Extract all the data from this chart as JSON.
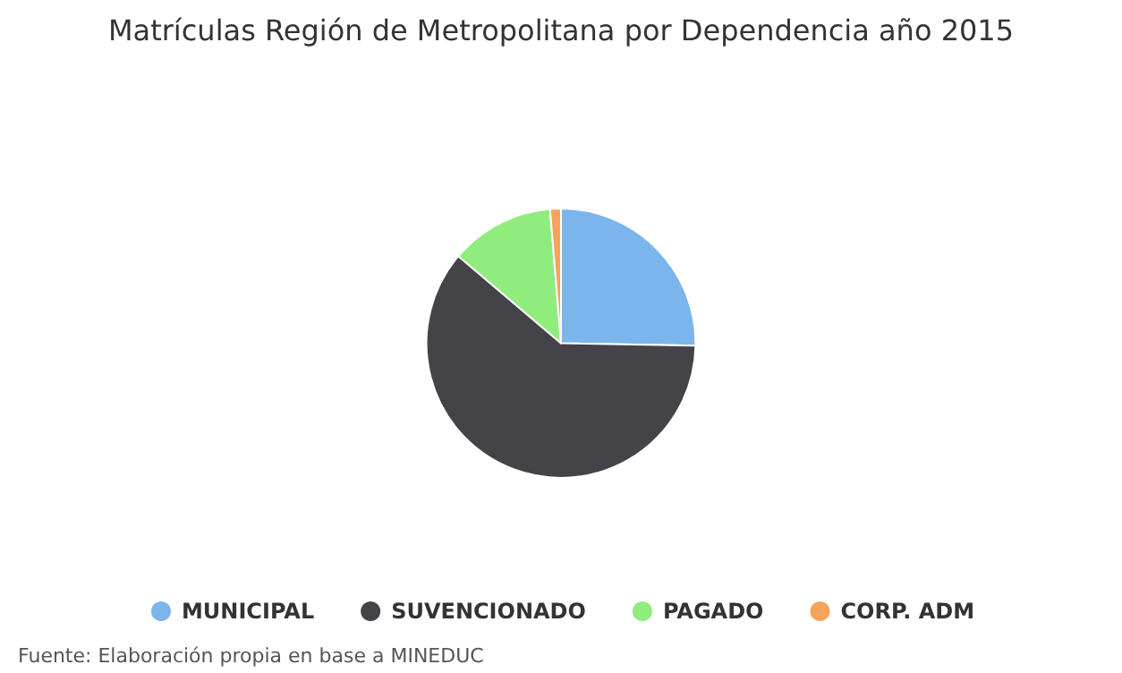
{
  "chart_data": {
    "type": "pie",
    "title": "Matrículas Región de Metropolitana por Dependencia año 2015",
    "categories": [
      "MUNICIPAL",
      "SUVENCIONADO",
      "PAGADO",
      "CORP. ADM"
    ],
    "values": [
      25.3,
      60.9,
      12.5,
      1.3
    ],
    "colors": [
      "#7cb5ec",
      "#434348",
      "#90ed7d",
      "#f7a35c"
    ],
    "legend": "bottom",
    "annotations": [
      "Fuente: Elaboración propia en base a MINEDUC"
    ]
  }
}
